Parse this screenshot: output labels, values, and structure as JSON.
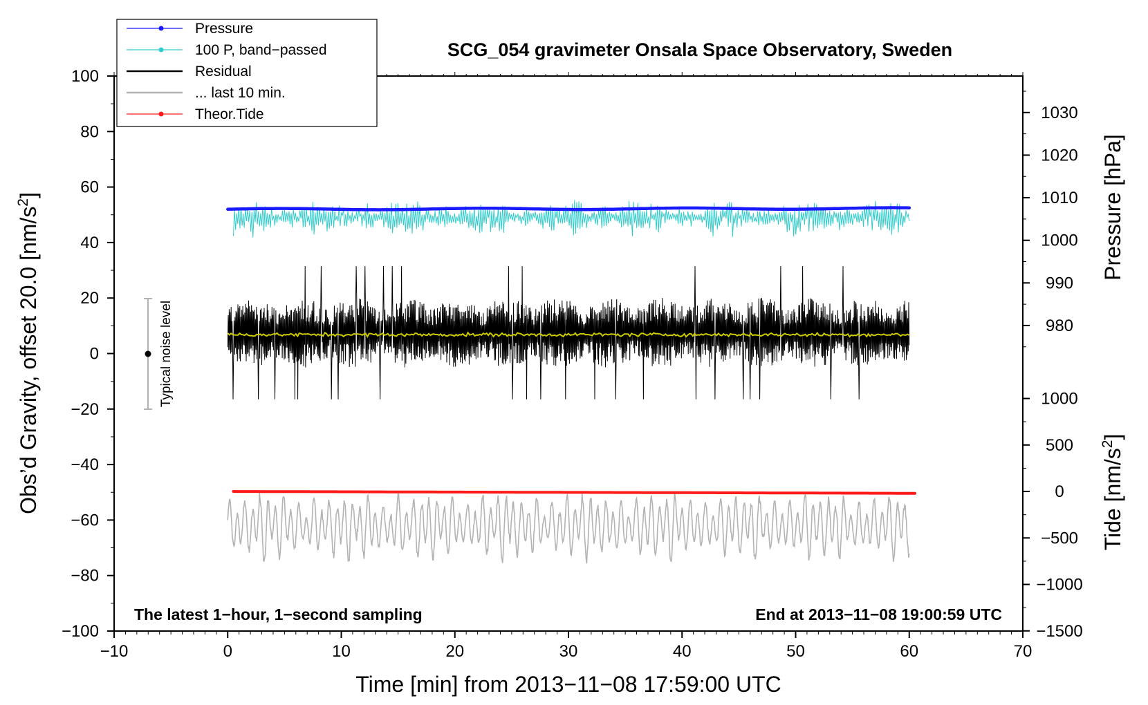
{
  "chart_data": {
    "type": "line",
    "title": "SCG_054 gravimeter Onsala Space Observatory, Sweden",
    "xlabel": "Time [min] from 2013−11−08 17:59:00 UTC",
    "ylabel_left": "Obs’d Gravity, offset 20.0 [nm/s",
    "ylabel_left_sup": "2",
    "ylabel_left_close": "]",
    "ylabel_right_pressure": "Pressure [hPa]",
    "ylabel_right_tide": "Tide [nm/s",
    "ylabel_right_tide_sup": "2",
    "ylabel_right_tide_close": "]",
    "xlim": [
      -10,
      70
    ],
    "ylim": [
      -100,
      100
    ],
    "x_ticks": [
      -10,
      0,
      10,
      20,
      30,
      40,
      50,
      60,
      70
    ],
    "x_tick_labels": [
      "−10",
      "0",
      "10",
      "20",
      "30",
      "40",
      "50",
      "60",
      "70"
    ],
    "y_ticks": [
      -100,
      -80,
      -60,
      -40,
      -20,
      0,
      20,
      40,
      60,
      80,
      100
    ],
    "y_tick_labels": [
      "−100",
      "−80",
      "−60",
      "−40",
      "−20",
      "0",
      "20",
      "40",
      "60",
      "80",
      "100"
    ],
    "pressure_axis": {
      "ticks": [
        980,
        990,
        1000,
        1010,
        1020,
        1030
      ],
      "tick_labels": [
        "980",
        "990",
        "1000",
        "1010",
        "1020",
        "1030"
      ],
      "gravity_at_1000": 40.8,
      "gravity_per_hpa": 1.535
    },
    "tide_axis": {
      "ticks": [
        -1500,
        -1000,
        -500,
        0,
        500,
        1000
      ],
      "tick_labels": [
        "−1500",
        "−1000",
        "−500",
        "0",
        "500",
        "1000"
      ],
      "gravity_at_0": -49.7,
      "gravity_per_unit": 0.0335
    },
    "legend": {
      "position": "top-left",
      "entries": [
        {
          "label": "Pressure",
          "color": "#1a1aff",
          "marker": true
        },
        {
          "label": "100 P, band−passed",
          "color": "#33cccc",
          "marker": true
        },
        {
          "label": "Residual",
          "color": "#000000",
          "marker": false
        },
        {
          "label": "... last 10 min.",
          "color": "#b3b3b3",
          "marker": false
        },
        {
          "label": "Theor.Tide",
          "color": "#ff1a1a",
          "marker": true
        }
      ]
    },
    "series": [
      {
        "name": "Pressure",
        "color": "#1a1aff",
        "x_range": [
          0,
          60
        ],
        "y_start": 52.0,
        "y_end": 52.3,
        "amplitude": 0.25
      },
      {
        "name": "100 P, band−passed",
        "color": "#33cccc",
        "x_range": [
          0.5,
          60
        ],
        "center": 49.0,
        "amplitude": 4.5
      },
      {
        "name": "Residual",
        "color": "#000000",
        "x_range": [
          0,
          60
        ],
        "center": 7.5,
        "amplitude": 11.5
      },
      {
        "name": "Residual (smoothed)",
        "color": "#cccc00",
        "x_range": [
          0,
          60
        ],
        "center": 6.8,
        "amplitude": 0.6
      },
      {
        "name": "... last 10 min.",
        "color": "#b3b3b3",
        "x_range": [
          0,
          60
        ],
        "center": -62.0,
        "amplitude": 10.0
      },
      {
        "name": "Theor.Tide",
        "color": "#ff1a1a",
        "x_range": [
          0.5,
          60.5
        ],
        "tide_start": 0,
        "tide_end": -20
      }
    ],
    "noise_bar": {
      "label": "Typical noise level",
      "x": -7,
      "y_center": 0,
      "y_low": -20,
      "y_high": 20,
      "color": "#b3b3b3"
    },
    "annotations": {
      "bottom_left": "The latest 1−hour, 1−second sampling",
      "bottom_right": "End at 2013−11−08 19:00:59 UTC"
    }
  }
}
